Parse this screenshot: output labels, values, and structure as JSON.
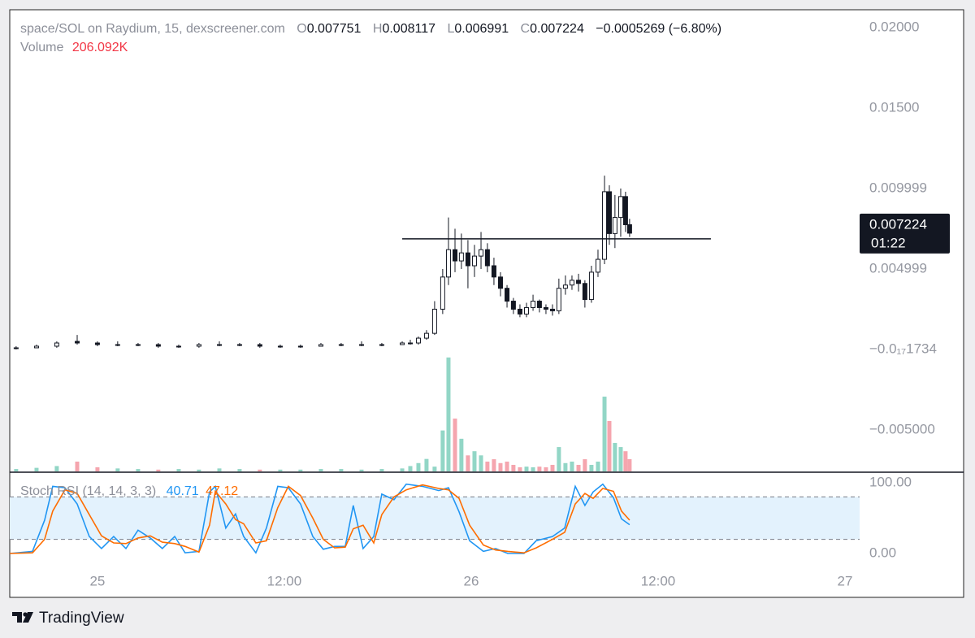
{
  "chart_data": [
    {
      "type": "candlestick",
      "title": "space/SOL on Raydium, 15, dexscreener.com",
      "legend": {
        "o": "O",
        "o_value": "0.007751",
        "h": "H",
        "h_value": "0.008117",
        "l": "L",
        "l_value": "0.006991",
        "c": "C",
        "c_value": "0.007224",
        "change": "−0.0005269 (−6.80%)",
        "volume": "Volume",
        "volume_value": "206.092K"
      },
      "x": [
        18.78,
        20.09,
        21.39,
        22.7,
        24.0,
        25.3,
        26.61,
        27.91,
        29.22,
        30.52,
        31.83,
        33.13,
        34.43,
        35.74,
        37.04,
        38.35,
        39.65,
        40.96,
        42.26,
        43.57,
        44.09,
        44.61,
        45.13,
        45.65,
        46.17,
        46.54,
        46.96,
        47.37,
        47.79,
        48.21,
        48.63,
        49.04,
        49.46,
        49.88,
        50.3,
        50.71,
        51.13,
        51.55,
        51.97,
        52.38,
        52.8,
        53.22,
        53.63,
        54.05,
        54.47,
        54.89,
        55.3,
        55.72,
        56.14,
        56.56,
        56.87,
        57.23,
        57.6,
        57.91,
        58.17
      ],
      "open": [
        0.0001,
        0.0001,
        0.0002,
        0.0005,
        0.0004,
        0.0003,
        0.0003,
        0.0003,
        0.0002,
        0.0002,
        0.0003,
        0.0003,
        0.0003,
        0.0002,
        0.0002,
        0.0002,
        0.0003,
        0.0003,
        0.0003,
        0.0003,
        0.0004,
        0.0004,
        0.0007,
        0.001,
        0.0025,
        0.0045,
        0.0062,
        0.0055,
        0.006,
        0.0052,
        0.0058,
        0.0062,
        0.0052,
        0.0045,
        0.0038,
        0.003,
        0.0025,
        0.0022,
        0.0026,
        0.003,
        0.0026,
        0.0025,
        0.0024,
        0.0038,
        0.004,
        0.0043,
        0.0041,
        0.0031,
        0.0048,
        0.0056,
        0.0098,
        0.0072,
        0.0082,
        0.0095,
        0.007751
      ],
      "high": [
        0.0002,
        0.0003,
        0.0005,
        0.0009,
        0.0005,
        0.0005,
        0.0004,
        0.0004,
        0.0003,
        0.0004,
        0.0005,
        0.0004,
        0.0004,
        0.0003,
        0.0003,
        0.0004,
        0.0004,
        0.0005,
        0.0004,
        0.0005,
        0.0006,
        0.0008,
        0.0012,
        0.003,
        0.005,
        0.0082,
        0.0075,
        0.0072,
        0.0068,
        0.0065,
        0.0073,
        0.0066,
        0.0057,
        0.0048,
        0.004,
        0.0032,
        0.0028,
        0.0029,
        0.0034,
        0.0031,
        0.0028,
        0.0028,
        0.0044,
        0.0046,
        0.0046,
        0.0047,
        0.0043,
        0.0052,
        0.0062,
        0.0108,
        0.0102,
        0.0096,
        0.01,
        0.0098,
        0.008117
      ],
      "low": [
        0.0,
        0.0001,
        0.0001,
        0.0003,
        0.0002,
        0.0002,
        0.0002,
        0.0001,
        0.0001,
        0.0001,
        0.0002,
        0.0002,
        0.0001,
        0.0001,
        0.0001,
        0.0002,
        0.0002,
        0.0002,
        0.0002,
        0.0003,
        0.0003,
        0.0003,
        0.0006,
        0.0009,
        0.0022,
        0.004,
        0.0048,
        0.005,
        0.0038,
        0.0045,
        0.005,
        0.0048,
        0.004,
        0.0033,
        0.0026,
        0.0022,
        0.002,
        0.002,
        0.0024,
        0.0023,
        0.0022,
        0.0021,
        0.0022,
        0.0034,
        0.0037,
        0.0036,
        0.0026,
        0.0029,
        0.0045,
        0.0053,
        0.0065,
        0.0063,
        0.007,
        0.0073,
        0.006991
      ],
      "close": [
        0.0001,
        0.0002,
        0.0004,
        0.0004,
        0.0003,
        0.0003,
        0.0003,
        0.0002,
        0.0002,
        0.0003,
        0.0003,
        0.0003,
        0.0002,
        0.0002,
        0.0002,
        0.0003,
        0.0003,
        0.0003,
        0.0003,
        0.0004,
        0.0004,
        0.0007,
        0.001,
        0.0025,
        0.0045,
        0.0062,
        0.0055,
        0.006,
        0.0052,
        0.0058,
        0.0062,
        0.0052,
        0.0045,
        0.0038,
        0.003,
        0.0025,
        0.0022,
        0.0026,
        0.003,
        0.0026,
        0.0025,
        0.0024,
        0.0038,
        0.004,
        0.0043,
        0.0041,
        0.0031,
        0.0048,
        0.0056,
        0.0098,
        0.0072,
        0.0082,
        0.0095,
        0.00775,
        0.007224
      ],
      "volume": [
        40000,
        60000,
        90000,
        165000,
        70000,
        50000,
        40000,
        30000,
        40000,
        30000,
        50000,
        40000,
        30000,
        30000,
        30000,
        40000,
        40000,
        30000,
        40000,
        50000,
        90000,
        140000,
        210000,
        80000,
        690000,
        1920000,
        890000,
        550000,
        270000,
        340000,
        270000,
        165000,
        205000,
        140000,
        165000,
        110000,
        70000,
        80000,
        70000,
        80000,
        70000,
        110000,
        410000,
        140000,
        165000,
        110000,
        205000,
        110000,
        165000,
        1260000,
        850000,
        480000,
        410000,
        340000,
        206092
      ],
      "up_color": "#ffffff",
      "down_color": "#131722",
      "wick_color": "#131722",
      "volume_up_color": "#92d6c6",
      "volume_down_color": "#f5a5ae",
      "xlim": [
        18.37,
        72.94
      ],
      "xticks": [
        {
          "value": 24,
          "label": "25"
        },
        {
          "value": 36,
          "label": "12:00"
        },
        {
          "value": 48,
          "label": "26"
        },
        {
          "value": 60,
          "label": "12:00"
        },
        {
          "value": 72,
          "label": "27"
        }
      ],
      "ylim": [
        -0.00758,
        0.02111
      ],
      "yticks": [
        {
          "value": 0.02,
          "label": "0.02000"
        },
        {
          "value": 0.015,
          "label": "0.01500"
        },
        0.009999,
        0.004999,
        {
          "value": -1.734e-18,
          "label": "−0.0₁₇1734"
        },
        {
          "value": -0.005,
          "label": "−0.005000"
        }
      ],
      "volume_ylim": [
        0,
        4000000
      ],
      "hline": {
        "value": 0.00687,
        "x_from": 43.57,
        "x_to": 63.39
      },
      "last_price_label": "0.007224",
      "countdown": "01:22"
    },
    {
      "type": "line",
      "title": "Stoch RSI (14, 14, 3, 3)",
      "x": [
        18.37,
        19.83,
        20.61,
        21.13,
        21.91,
        22.7,
        23.48,
        24.26,
        25.04,
        25.83,
        26.61,
        27.39,
        28.17,
        28.96,
        29.63,
        30.52,
        31.2,
        31.57,
        32.24,
        32.87,
        33.39,
        34.17,
        34.85,
        35.58,
        36.26,
        37.04,
        37.83,
        38.5,
        39.23,
        39.91,
        40.43,
        41.06,
        41.74,
        42.26,
        43.04,
        43.83,
        44.87,
        45.91,
        46.54,
        47.22,
        47.9,
        48.78,
        49.57,
        50.35,
        51.39,
        52.17,
        53.22,
        54.0,
        54.68,
        55.3,
        55.83,
        56.45,
        57.13,
        57.65,
        58.17
      ],
      "series": [
        {
          "color": "#2196f3",
          "last_label": "40.71",
          "values": [
            0,
            3,
            47,
            95,
            93,
            70,
            24,
            7,
            24,
            7,
            33,
            22,
            7,
            24,
            1,
            3,
            87,
            95,
            36,
            56,
            24,
            1,
            36,
            95,
            93,
            70,
            24,
            6,
            10,
            10,
            68,
            7,
            24,
            84,
            76,
            98,
            95,
            89,
            93,
            59,
            18,
            3,
            7,
            0,
            0,
            18,
            24,
            36,
            95,
            68,
            87,
            98,
            79,
            49,
            40.71
          ]
        },
        {
          "color": "#ff6d00",
          "last_label": "47.12",
          "values": [
            0,
            1,
            20,
            60,
            90,
            85,
            55,
            25,
            15,
            14,
            22,
            25,
            16,
            14,
            10,
            2,
            40,
            88,
            70,
            48,
            42,
            15,
            18,
            65,
            95,
            82,
            50,
            20,
            8,
            9,
            35,
            40,
            15,
            55,
            80,
            90,
            97,
            92,
            90,
            78,
            40,
            12,
            5,
            3,
            1,
            8,
            20,
            30,
            70,
            85,
            78,
            92,
            88,
            60,
            47.12
          ]
        }
      ],
      "ylim": [
        -21.8,
        113.8
      ],
      "yticks": [
        {
          "value": 100,
          "label": "100.00"
        },
        {
          "value": 0,
          "label": "0.00"
        }
      ],
      "bands": [
        80,
        20
      ],
      "band_fill": "#e3f2fd"
    }
  ],
  "footer": {
    "brand": "TradingView"
  }
}
